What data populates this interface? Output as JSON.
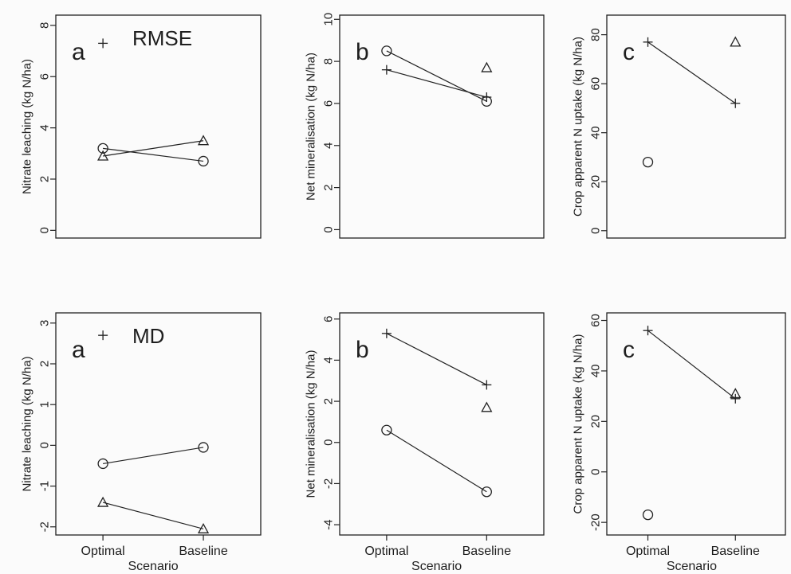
{
  "chart_data": [
    {
      "type": "scatter",
      "panel": "a",
      "stat": "RMSE",
      "ylabel": "Nitrate leaching (kg N/ha)",
      "ylim": [
        -0.3,
        8.4
      ],
      "yticks": [
        0,
        2,
        4,
        6,
        8
      ],
      "categories": [
        "Optimal",
        "Baseline"
      ],
      "xlabel": "",
      "series": [
        {
          "marker": "plus",
          "values": [
            7.3,
            null
          ]
        },
        {
          "marker": "circle",
          "values": [
            3.2,
            2.7
          ]
        },
        {
          "marker": "triangle",
          "values": [
            2.9,
            3.5
          ]
        }
      ]
    },
    {
      "type": "scatter",
      "panel": "b",
      "stat": "",
      "ylabel": "Net mineralisation (kg N/ha)",
      "ylim": [
        -0.4,
        10.2
      ],
      "yticks": [
        0,
        2,
        4,
        6,
        8,
        10
      ],
      "categories": [
        "Optimal",
        "Baseline"
      ],
      "xlabel": "",
      "series": [
        {
          "marker": "plus",
          "values": [
            7.6,
            6.3
          ]
        },
        {
          "marker": "circle",
          "values": [
            8.5,
            6.1
          ]
        },
        {
          "marker": "triangle",
          "values": [
            null,
            7.7
          ]
        }
      ]
    },
    {
      "type": "scatter",
      "panel": "c",
      "stat": "",
      "ylabel": "Crop apparent N uptake (kg N/ha)",
      "ylim": [
        -3,
        88
      ],
      "yticks": [
        0,
        20,
        40,
        60,
        80
      ],
      "categories": [
        "Optimal",
        "Baseline"
      ],
      "xlabel": "",
      "series": [
        {
          "marker": "plus",
          "values": [
            77,
            52
          ]
        },
        {
          "marker": "circle",
          "values": [
            28,
            null
          ]
        },
        {
          "marker": "triangle",
          "values": [
            null,
            77
          ]
        }
      ]
    },
    {
      "type": "scatter",
      "panel": "a",
      "stat": "MD",
      "ylabel": "Nitrate leaching (kg N/ha)",
      "ylim": [
        -2.2,
        3.25
      ],
      "yticks": [
        -2,
        -1,
        0,
        1,
        2,
        3
      ],
      "categories": [
        "Optimal",
        "Baseline"
      ],
      "xlabel": "Scenario",
      "series": [
        {
          "marker": "plus",
          "values": [
            2.7,
            null
          ]
        },
        {
          "marker": "circle",
          "values": [
            -0.45,
            -0.05
          ]
        },
        {
          "marker": "triangle",
          "values": [
            -1.4,
            -2.05
          ]
        }
      ]
    },
    {
      "type": "scatter",
      "panel": "b",
      "stat": "",
      "ylabel": "Net mineralisation (kg N/ha)",
      "ylim": [
        -4.5,
        6.3
      ],
      "yticks": [
        -4,
        -2,
        0,
        2,
        4,
        6
      ],
      "categories": [
        "Optimal",
        "Baseline"
      ],
      "xlabel": "Scenario",
      "series": [
        {
          "marker": "plus",
          "values": [
            5.3,
            2.8
          ]
        },
        {
          "marker": "circle",
          "values": [
            0.6,
            -2.4
          ]
        },
        {
          "marker": "triangle",
          "values": [
            null,
            1.7
          ]
        }
      ]
    },
    {
      "type": "scatter",
      "panel": "c",
      "stat": "",
      "ylabel": "Crop apparent N uptake (kg N/ha)",
      "ylim": [
        -25,
        63
      ],
      "yticks": [
        -20,
        0,
        20,
        40,
        60
      ],
      "categories": [
        "Optimal",
        "Baseline"
      ],
      "xlabel": "Scenario",
      "series": [
        {
          "marker": "plus",
          "values": [
            56,
            29
          ]
        },
        {
          "marker": "circle",
          "values": [
            -17,
            null
          ]
        },
        {
          "marker": "triangle",
          "values": [
            null,
            31
          ]
        }
      ]
    }
  ]
}
